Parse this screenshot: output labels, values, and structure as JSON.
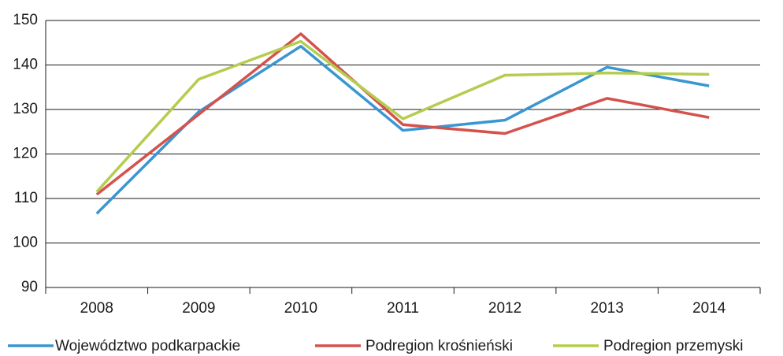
{
  "chart_data": {
    "type": "line",
    "categories": [
      "2008",
      "2009",
      "2010",
      "2011",
      "2012",
      "2013",
      "2014"
    ],
    "series": [
      {
        "name": "Województwo podkarpackie",
        "color": "#3a96d2",
        "values": [
          106.6,
          129.5,
          144.2,
          125.3,
          127.6,
          139.5,
          135.3
        ]
      },
      {
        "name": "Podregion krośnieński",
        "color": "#d5524c",
        "values": [
          110.9,
          128.9,
          147.0,
          126.6,
          124.6,
          132.5,
          128.2
        ]
      },
      {
        "name": "Podregion przemyski",
        "color": "#b4cd4f",
        "values": [
          111.5,
          136.8,
          145.3,
          127.9,
          137.7,
          138.2,
          137.9
        ]
      }
    ],
    "ylim": [
      90,
      150
    ],
    "yticks": [
      90,
      100,
      110,
      120,
      130,
      140,
      150
    ],
    "grid": true
  }
}
